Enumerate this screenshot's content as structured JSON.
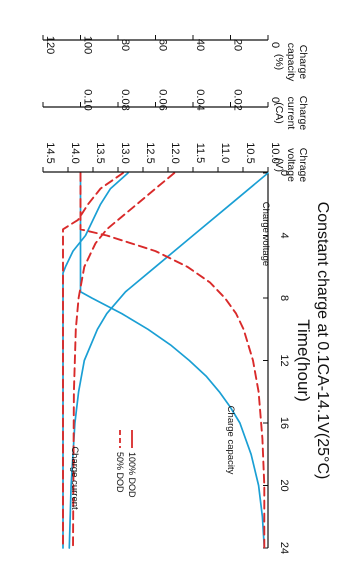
{
  "chart_data": {
    "type": "line",
    "title": "Constant charge at 0.1CA-14.1V(25°C)",
    "xlabel": "Time(hour)",
    "x_ticks": [
      0,
      4,
      8,
      12,
      16,
      20,
      24
    ],
    "xlim": [
      0,
      24
    ],
    "grid": false,
    "legend": {
      "placement": "center-right",
      "entries": [
        {
          "label": "100% DOD",
          "style": "solid",
          "color": "#d92a2a"
        },
        {
          "label": "50% DOD",
          "style": "dashed",
          "color": "#d92a2a"
        }
      ]
    },
    "axes": [
      {
        "id": "capacity",
        "label": "Charge capacity",
        "unit": "(%)",
        "ylim": [
          0,
          120
        ],
        "ticks": [
          "0",
          "20",
          "40",
          "60",
          "80",
          "100",
          "120"
        ]
      },
      {
        "id": "current",
        "label": "Charge current",
        "unit": "(CA)",
        "ylim": [
          0,
          0.12
        ],
        "ticks": [
          "0",
          "0.02",
          "0.04",
          "0.06",
          "0.08",
          "0.10",
          ""
        ]
      },
      {
        "id": "voltage",
        "label": "Chrage voltage",
        "unit": "(V)",
        "ylim": [
          10.0,
          14.5
        ],
        "ticks": [
          "10.0",
          "10.5",
          "11.0",
          "11.5",
          "12.0",
          "12.5",
          "13.0",
          "13.5",
          "14.0",
          "14.5"
        ]
      }
    ],
    "annotations": [
      "Charge voltage",
      "Charge capacity",
      "Charge current"
    ],
    "series": [
      {
        "name": "100% DOD",
        "kind": "Charge voltage",
        "axis": "voltage",
        "style": "solid",
        "color": "#1a9fd4",
        "points": [
          [
            0,
            12.8
          ],
          [
            1,
            13.15
          ],
          [
            2,
            13.35
          ],
          [
            3,
            13.5
          ],
          [
            4,
            13.65
          ],
          [
            5,
            13.9
          ],
          [
            6,
            14.05
          ],
          [
            6.4,
            14.1
          ],
          [
            24,
            14.1
          ]
        ]
      },
      {
        "name": "100% DOD",
        "kind": "Charge current",
        "axis": "current",
        "style": "solid",
        "color": "#1a9fd4",
        "points": [
          [
            0,
            0.1
          ],
          [
            7.6,
            0.1
          ],
          [
            8,
            0.094
          ],
          [
            9,
            0.078
          ],
          [
            10,
            0.064
          ],
          [
            11,
            0.052
          ],
          [
            12,
            0.042
          ],
          [
            13,
            0.033
          ],
          [
            14,
            0.026
          ],
          [
            15,
            0.02
          ],
          [
            16,
            0.015
          ],
          [
            18,
            0.009
          ],
          [
            20,
            0.005
          ],
          [
            22,
            0.003
          ],
          [
            24,
            0.002
          ]
        ]
      },
      {
        "name": "100% DOD",
        "kind": "Charge capacity",
        "axis": "capacity",
        "style": "solid",
        "color": "#1a9fd4",
        "points": [
          [
            0,
            0
          ],
          [
            2,
            20
          ],
          [
            4,
            40
          ],
          [
            6,
            60
          ],
          [
            7.6,
            76
          ],
          [
            9,
            86
          ],
          [
            10,
            91
          ],
          [
            12,
            98
          ],
          [
            14,
            101
          ],
          [
            16,
            103
          ],
          [
            20,
            105
          ],
          [
            24,
            106
          ]
        ]
      },
      {
        "name": "50% DOD",
        "kind": "Charge voltage",
        "axis": "voltage",
        "style": "dashed",
        "color": "#d92a2a",
        "points": [
          [
            0,
            12.9
          ],
          [
            1,
            13.35
          ],
          [
            2,
            13.6
          ],
          [
            3,
            13.8
          ],
          [
            3.6,
            14.1
          ],
          [
            24,
            14.1
          ]
        ]
      },
      {
        "name": "50% DOD",
        "kind": "Charge current",
        "axis": "current",
        "style": "dashed",
        "color": "#d92a2a",
        "points": [
          [
            0,
            0.1
          ],
          [
            3.6,
            0.1
          ],
          [
            4,
            0.086
          ],
          [
            5,
            0.06
          ],
          [
            6,
            0.043
          ],
          [
            7,
            0.031
          ],
          [
            8,
            0.023
          ],
          [
            9,
            0.017
          ],
          [
            10,
            0.013
          ],
          [
            12,
            0.008
          ],
          [
            14,
            0.005
          ],
          [
            17,
            0.003
          ],
          [
            20,
            0.002
          ],
          [
            24,
            0.002
          ]
        ]
      },
      {
        "name": "50% DOD",
        "kind": "Charge capacity",
        "axis": "capacity",
        "style": "dashed",
        "color": "#d92a2a",
        "points": [
          [
            0,
            50
          ],
          [
            1,
            60
          ],
          [
            2,
            70
          ],
          [
            3,
            80
          ],
          [
            3.6,
            86
          ],
          [
            4.5,
            92
          ],
          [
            6,
            98
          ],
          [
            8,
            101
          ],
          [
            10,
            102.5
          ],
          [
            14,
            103.5
          ],
          [
            24,
            104
          ]
        ]
      }
    ]
  }
}
